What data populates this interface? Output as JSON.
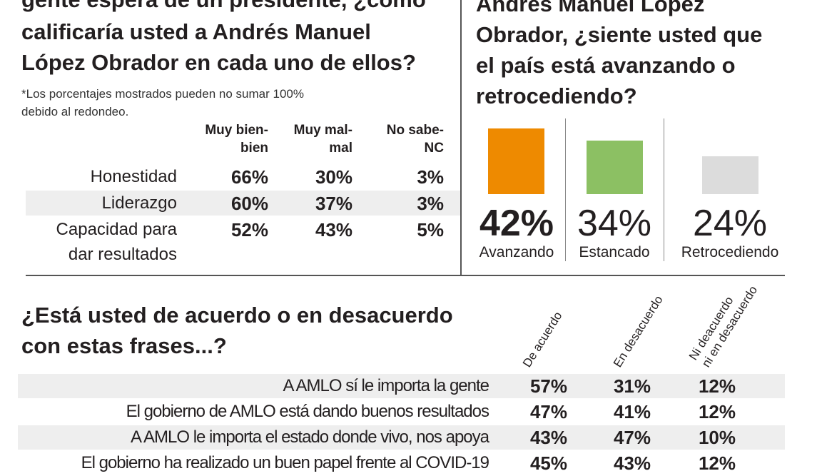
{
  "left": {
    "title_lines": [
      "gente espera de un presidente, ¿cómo",
      "calificaría usted a Andrés Manuel",
      "López Obrador en cada uno de ellos?"
    ],
    "note_lines": [
      "*Los porcentajes mostrados pueden no sumar 100%",
      "debido al redondeo."
    ],
    "columns": [
      [
        "Muy bien-",
        "bien"
      ],
      [
        "Muy mal-",
        "mal"
      ],
      [
        "No sabe-",
        "NC"
      ]
    ],
    "rows": [
      {
        "label": [
          "Honestidad"
        ],
        "values": [
          "66%",
          "30%",
          "3%"
        ]
      },
      {
        "label": [
          "Liderazgo"
        ],
        "values": [
          "60%",
          "37%",
          "3%"
        ]
      },
      {
        "label": [
          "Capacidad para",
          "dar resultados"
        ],
        "values": [
          "52%",
          "43%",
          "5%"
        ]
      }
    ]
  },
  "right": {
    "title_lines": [
      "Andrés Manuel López",
      "Obrador, ¿siente usted que",
      "el país está avanzando o",
      "retrocediendo?"
    ]
  },
  "chart_data": {
    "type": "bar",
    "categories": [
      "Avanzando",
      "Estancado",
      "Retrocediendo"
    ],
    "values": [
      42,
      34,
      24
    ],
    "value_labels": [
      "42%",
      "34%",
      "24%"
    ],
    "colors": [
      "#ee8a00",
      "#8cc063",
      "#dcdcdc"
    ],
    "ylim": [
      0,
      100
    ]
  },
  "bottom": {
    "title_lines": [
      "¿Está usted de acuerdo o en desacuerdo",
      "con estas frases...?"
    ],
    "columns": [
      [
        "De acuerdo"
      ],
      [
        "En desacuerdo"
      ],
      [
        "Ni deacuerdo",
        "ni en desacuerdo"
      ]
    ],
    "rows": [
      {
        "label": "A AMLO sí le importa la gente",
        "values": [
          "57%",
          "31%",
          "12%"
        ]
      },
      {
        "label": "El gobierno de AMLO está dando buenos resultados",
        "values": [
          "47%",
          "41%",
          "12%"
        ]
      },
      {
        "label": "A AMLO le importa el estado donde vivo, nos apoya",
        "values": [
          "43%",
          "47%",
          "10%"
        ]
      },
      {
        "label": "El gobierno ha realizado un buen papel frente al COVID-19",
        "values": [
          "45%",
          "43%",
          "12%"
        ]
      }
    ]
  }
}
